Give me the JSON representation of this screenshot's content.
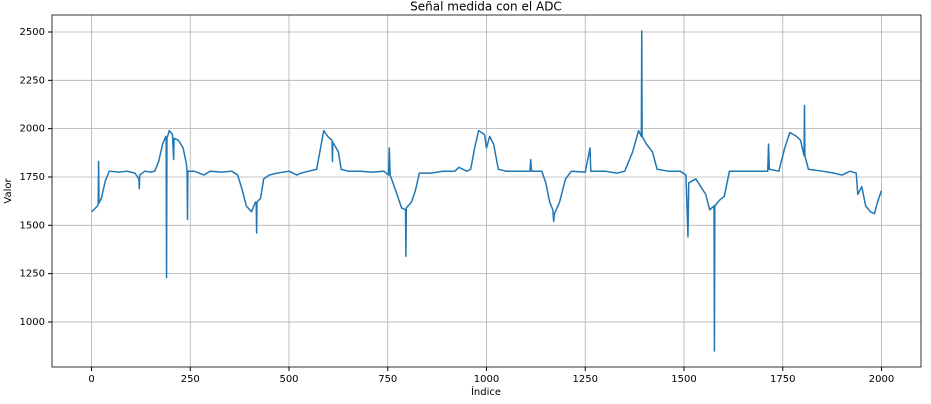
{
  "chart_data": {
    "type": "line",
    "title": "Señal medida con el ADC",
    "x_label": "Índice",
    "y_label": "Valor",
    "x": [
      0,
      8,
      15,
      17,
      18,
      19,
      25,
      35,
      45,
      70,
      90,
      110,
      120,
      121,
      122,
      135,
      150,
      160,
      170,
      180,
      188,
      189,
      190,
      191,
      197,
      205,
      208,
      209,
      220,
      232,
      240,
      242,
      243,
      244,
      260,
      285,
      300,
      330,
      355,
      370,
      382,
      392,
      405,
      415,
      417,
      418,
      419,
      428,
      436,
      450,
      470,
      500,
      520,
      530,
      550,
      570,
      578,
      588,
      598,
      609,
      610,
      611,
      625,
      632,
      650,
      680,
      710,
      740,
      752,
      754,
      756,
      770,
      785,
      795,
      796,
      797,
      810,
      820,
      830,
      860,
      890,
      920,
      930,
      950,
      960,
      970,
      980,
      995,
      1000,
      1008,
      1018,
      1030,
      1050,
      1080,
      1100,
      1110,
      1112,
      1114,
      1140,
      1150,
      1160,
      1168,
      1170,
      1172,
      1185,
      1200,
      1215,
      1250,
      1262,
      1264,
      1300,
      1330,
      1350,
      1370,
      1385,
      1392,
      1393,
      1394,
      1405,
      1420,
      1432,
      1460,
      1490,
      1505,
      1510,
      1512,
      1530,
      1555,
      1565,
      1576,
      1577,
      1578,
      1590,
      1602,
      1615,
      1650,
      1680,
      1700,
      1712,
      1714,
      1716,
      1740,
      1755,
      1768,
      1785,
      1795,
      1804,
      1805,
      1806,
      1815,
      1850,
      1880,
      1900,
      1920,
      1936,
      1940,
      1950,
      1960,
      1972,
      1982,
      1990,
      2000
    ],
    "series": [
      {
        "name": "ADC",
        "color": "#1f77b4",
        "values": [
          1570,
          1585,
          1600,
          1610,
          1830,
          1615,
          1640,
          1730,
          1780,
          1775,
          1780,
          1770,
          1740,
          1690,
          1760,
          1780,
          1775,
          1780,
          1830,
          1920,
          1960,
          1940,
          1230,
          1950,
          1990,
          1970,
          1840,
          1950,
          1940,
          1900,
          1820,
          1780,
          1530,
          1780,
          1780,
          1760,
          1780,
          1775,
          1780,
          1760,
          1680,
          1600,
          1570,
          1620,
          1620,
          1460,
          1620,
          1640,
          1740,
          1760,
          1770,
          1780,
          1760,
          1770,
          1780,
          1790,
          1880,
          1990,
          1960,
          1940,
          1830,
          1930,
          1880,
          1790,
          1780,
          1780,
          1775,
          1780,
          1760,
          1900,
          1760,
          1680,
          1590,
          1580,
          1340,
          1590,
          1620,
          1680,
          1770,
          1770,
          1780,
          1780,
          1800,
          1780,
          1790,
          1900,
          1990,
          1970,
          1900,
          1960,
          1920,
          1790,
          1780,
          1780,
          1780,
          1780,
          1840,
          1780,
          1780,
          1720,
          1620,
          1580,
          1520,
          1560,
          1620,
          1740,
          1780,
          1775,
          1900,
          1780,
          1780,
          1770,
          1780,
          1880,
          1990,
          1960,
          2505,
          1960,
          1920,
          1880,
          1790,
          1780,
          1780,
          1760,
          1440,
          1720,
          1740,
          1660,
          1580,
          1600,
          850,
          1600,
          1630,
          1650,
          1780,
          1780,
          1780,
          1780,
          1780,
          1920,
          1790,
          1780,
          1900,
          1980,
          1960,
          1940,
          1860,
          2120,
          1860,
          1790,
          1780,
          1770,
          1760,
          1780,
          1770,
          1660,
          1700,
          1600,
          1570,
          1560,
          1620,
          1680
        ]
      }
    ],
    "xlim": [
      -100,
      2100
    ],
    "ylim": [
      767,
      2588
    ],
    "xticks": [
      0,
      250,
      500,
      750,
      1000,
      1250,
      1500,
      1750,
      2000
    ],
    "yticks": [
      1000,
      1250,
      1500,
      1750,
      2000,
      2250,
      2500
    ],
    "grid": true
  }
}
